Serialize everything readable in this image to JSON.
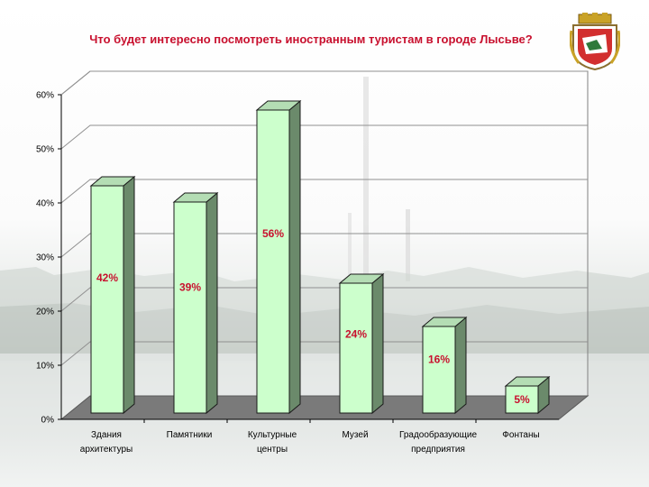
{
  "chart_data": {
    "type": "bar",
    "title": "Что будет интересно посмотреть иностранным туристам в городе Лысьве?",
    "categories": [
      [
        "Здания",
        "архитектуры"
      ],
      [
        "Памятники"
      ],
      [
        "Культурные",
        "центры"
      ],
      [
        "Музей"
      ],
      [
        "Градообразующие",
        "предприятия"
      ],
      [
        "Фонтаны"
      ]
    ],
    "values": [
      42,
      39,
      56,
      24,
      16,
      5
    ],
    "value_labels": [
      "42%",
      "39%",
      "56%",
      "24%",
      "16%",
      "5%"
    ],
    "y_ticks": [
      "0%",
      "10%",
      "20%",
      "30%",
      "40%",
      "50%",
      "60%"
    ],
    "ylim": [
      0,
      60
    ],
    "grid": true,
    "legend": "none",
    "colors": {
      "bar_front": "#ccffcc",
      "bar_side": "#6b8a6b",
      "bar_top": "#b4ddb4",
      "floor": "#7a7a7a",
      "label": "#c8102e"
    }
  },
  "emblem": {
    "icon": "city-coat-of-arms-icon"
  }
}
